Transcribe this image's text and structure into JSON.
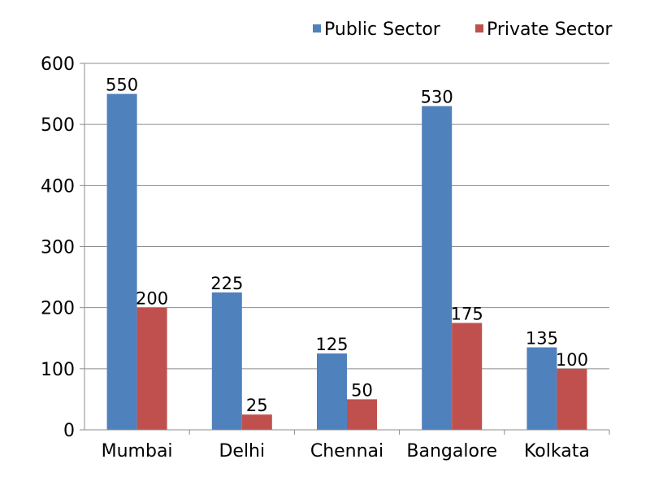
{
  "chart_data": {
    "type": "bar",
    "categories": [
      "Mumbai",
      "Delhi",
      "Chennai",
      "Bangalore",
      "Kolkata"
    ],
    "series": [
      {
        "name": "Public Sector",
        "color": "#4F81BD",
        "values": [
          550,
          225,
          125,
          530,
          135
        ]
      },
      {
        "name": "Private Sector",
        "color": "#C0504D",
        "values": [
          200,
          25,
          50,
          175,
          100
        ]
      }
    ],
    "ylim": [
      0,
      600
    ],
    "yticks": [
      0,
      100,
      200,
      300,
      400,
      500,
      600
    ],
    "grid": true,
    "legend_position": "top-right"
  }
}
